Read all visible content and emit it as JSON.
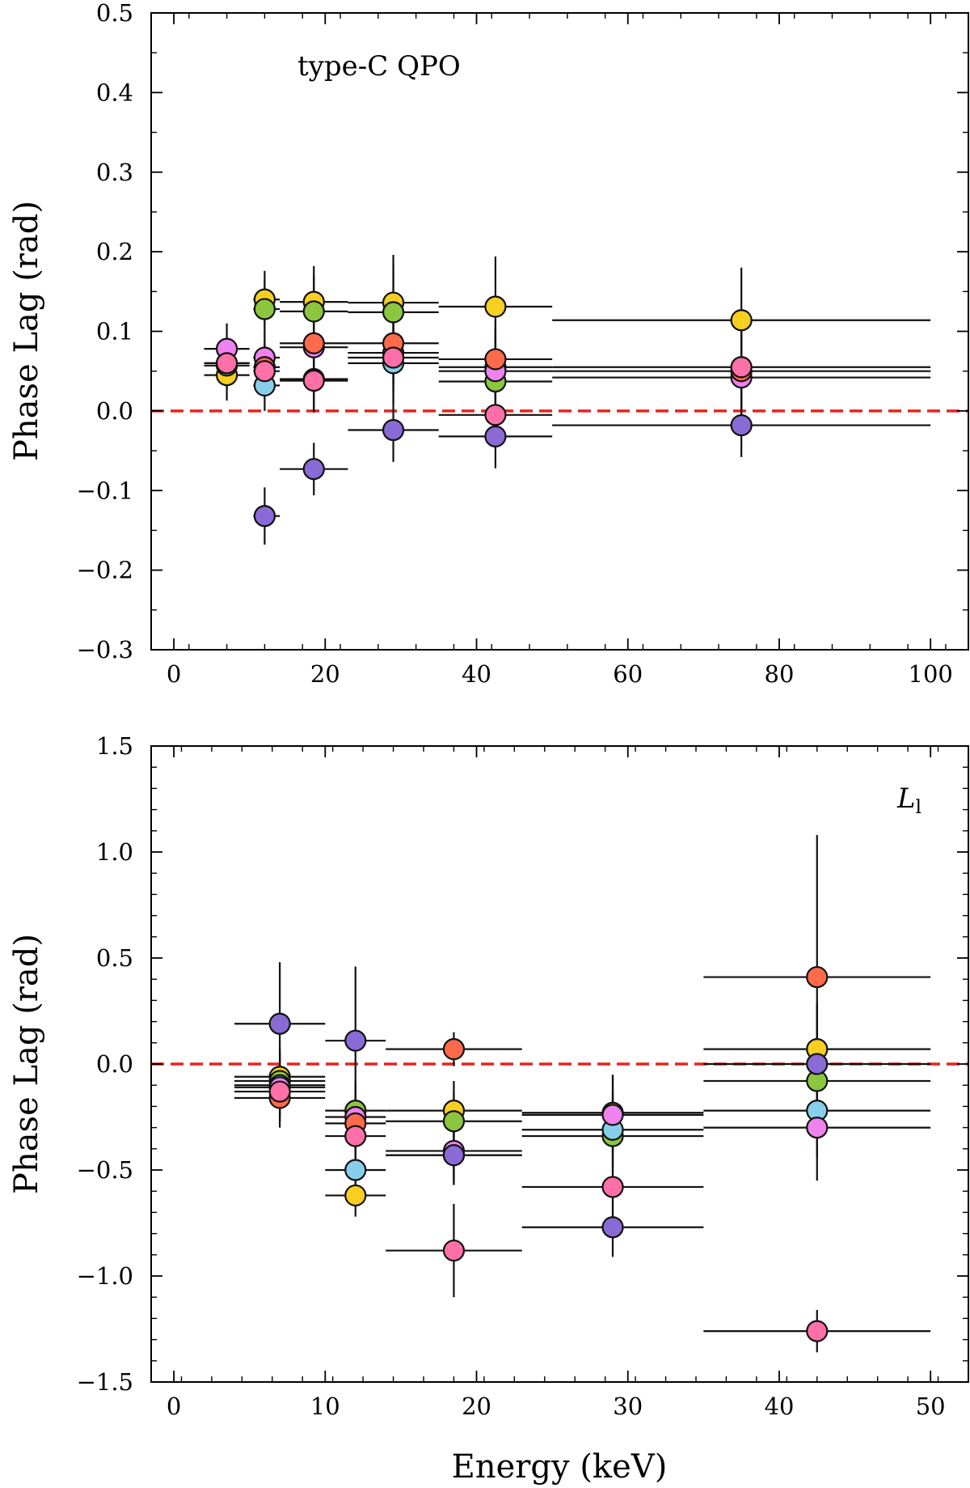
{
  "colors": {
    "zero_line": "#e8231e",
    "marker_edge": "#111111",
    "series": [
      "#f7cf20",
      "#8cc63f",
      "#87ceeb",
      "#ee82ee",
      "#ff6a4a",
      "#ff6fa8",
      "#8a6ad6"
    ]
  },
  "chart_data": [
    {
      "type": "scatter",
      "annotation": "type-C QPO",
      "xlabel": "",
      "ylabel": "Phase Lag (rad)",
      "xlim": [
        -3,
        105
      ],
      "ylim": [
        -0.3,
        0.5
      ],
      "xticks": [
        0,
        20,
        40,
        60,
        80,
        100
      ],
      "xtick_labels": [
        "0",
        "20",
        "40",
        "60",
        "80",
        "100"
      ],
      "yticks": [
        -0.3,
        -0.2,
        -0.1,
        0.0,
        0.1,
        0.2,
        0.3,
        0.4,
        0.5
      ],
      "ytick_labels": [
        "−0.3",
        "−0.2",
        "−0.1",
        "0.0",
        "0.1",
        "0.2",
        "0.3",
        "0.4",
        "0.5"
      ],
      "reference_line_y": 0,
      "points": [
        {
          "x": 7,
          "xlo": 4,
          "xhi": 10,
          "y": 0.045,
          "yerr": 0.032,
          "c": 0
        },
        {
          "x": 7,
          "xlo": 4,
          "xhi": 10,
          "y": 0.057,
          "yerr": 0.03,
          "c": 1
        },
        {
          "x": 7,
          "xlo": 4,
          "xhi": 10,
          "y": 0.06,
          "yerr": 0.03,
          "c": 2
        },
        {
          "x": 7,
          "xlo": 4,
          "xhi": 10,
          "y": 0.078,
          "yerr": 0.032,
          "c": 3
        },
        {
          "x": 7,
          "xlo": 4,
          "xhi": 10,
          "y": 0.06,
          "yerr": 0.03,
          "c": 5
        },
        {
          "x": 12,
          "xlo": 10.5,
          "xhi": 14,
          "y": 0.14,
          "yerr": 0.036,
          "c": 0
        },
        {
          "x": 12,
          "xlo": 10.5,
          "xhi": 14,
          "y": 0.128,
          "yerr": 0.036,
          "c": 1
        },
        {
          "x": 12,
          "xlo": 10.5,
          "xhi": 14,
          "y": 0.032,
          "yerr": 0.032,
          "c": 2
        },
        {
          "x": 12,
          "xlo": 10.5,
          "xhi": 14,
          "y": 0.067,
          "yerr": 0.034,
          "c": 3
        },
        {
          "x": 12,
          "xlo": 10.5,
          "xhi": 14,
          "y": 0.055,
          "yerr": 0.034,
          "c": 4
        },
        {
          "x": 12,
          "xlo": 10.5,
          "xhi": 14,
          "y": 0.05,
          "yerr": 0.034,
          "c": 5
        },
        {
          "x": 12,
          "xlo": 10.5,
          "xhi": 14,
          "y": -0.132,
          "yerr": 0.036,
          "c": 6
        },
        {
          "x": 18.5,
          "xlo": 14,
          "xhi": 23,
          "y": 0.137,
          "yerr": 0.045,
          "c": 0
        },
        {
          "x": 18.5,
          "xlo": 14,
          "xhi": 23,
          "y": 0.125,
          "yerr": 0.045,
          "c": 1
        },
        {
          "x": 18.5,
          "xlo": 14,
          "xhi": 23,
          "y": 0.04,
          "yerr": 0.04,
          "c": 2
        },
        {
          "x": 18.5,
          "xlo": 14,
          "xhi": 23,
          "y": 0.08,
          "yerr": 0.04,
          "c": 3
        },
        {
          "x": 18.5,
          "xlo": 14,
          "xhi": 23,
          "y": 0.085,
          "yerr": 0.04,
          "c": 4
        },
        {
          "x": 18.5,
          "xlo": 14,
          "xhi": 23,
          "y": 0.038,
          "yerr": 0.04,
          "c": 5
        },
        {
          "x": 18.5,
          "xlo": 14,
          "xhi": 23,
          "y": -0.073,
          "yerr": 0.033,
          "c": 6
        },
        {
          "x": 29,
          "xlo": 23,
          "xhi": 35,
          "y": 0.136,
          "yerr": 0.06,
          "c": 0
        },
        {
          "x": 29,
          "xlo": 23,
          "xhi": 35,
          "y": 0.124,
          "yerr": 0.06,
          "c": 1
        },
        {
          "x": 29,
          "xlo": 23,
          "xhi": 35,
          "y": 0.06,
          "yerr": 0.05,
          "c": 2
        },
        {
          "x": 29,
          "xlo": 23,
          "xhi": 35,
          "y": 0.073,
          "yerr": 0.05,
          "c": 3
        },
        {
          "x": 29,
          "xlo": 23,
          "xhi": 35,
          "y": 0.085,
          "yerr": 0.05,
          "c": 4
        },
        {
          "x": 29,
          "xlo": 23,
          "xhi": 35,
          "y": 0.067,
          "yerr": 0.05,
          "c": 5
        },
        {
          "x": 29,
          "xlo": 23,
          "xhi": 35,
          "y": -0.024,
          "yerr": 0.04,
          "c": 6
        },
        {
          "x": 42.5,
          "xlo": 35,
          "xhi": 50,
          "y": 0.131,
          "yerr": 0.063,
          "c": 0
        },
        {
          "x": 42.5,
          "xlo": 35,
          "xhi": 50,
          "y": 0.037,
          "yerr": 0.05,
          "c": 1
        },
        {
          "x": 42.5,
          "xlo": 35,
          "xhi": 50,
          "y": 0.055,
          "yerr": 0.05,
          "c": 2
        },
        {
          "x": 42.5,
          "xlo": 35,
          "xhi": 50,
          "y": 0.05,
          "yerr": 0.05,
          "c": 3
        },
        {
          "x": 42.5,
          "xlo": 35,
          "xhi": 50,
          "y": 0.065,
          "yerr": 0.05,
          "c": 4
        },
        {
          "x": 42.5,
          "xlo": 35,
          "xhi": 50,
          "y": -0.005,
          "yerr": 0.04,
          "c": 5
        },
        {
          "x": 42.5,
          "xlo": 35,
          "xhi": 50,
          "y": -0.032,
          "yerr": 0.04,
          "c": 6
        },
        {
          "x": 75,
          "xlo": 50,
          "xhi": 100,
          "y": 0.114,
          "yerr": 0.066,
          "c": 0
        },
        {
          "x": 75,
          "xlo": 50,
          "xhi": 100,
          "y": 0.042,
          "yerr": 0.05,
          "c": 3
        },
        {
          "x": 75,
          "xlo": 50,
          "xhi": 100,
          "y": 0.05,
          "yerr": 0.05,
          "c": 4
        },
        {
          "x": 75,
          "xlo": 50,
          "xhi": 100,
          "y": 0.055,
          "yerr": 0.05,
          "c": 5
        },
        {
          "x": 75,
          "xlo": 50,
          "xhi": 100,
          "y": -0.018,
          "yerr": 0.04,
          "c": 6
        }
      ]
    },
    {
      "type": "scatter",
      "annotation": "L",
      "annotation_sub": "l",
      "xlabel": "Energy (keV)",
      "ylabel": "Phase Lag (rad)",
      "xlim": [
        -1.5,
        52.5
      ],
      "ylim": [
        -1.5,
        1.5
      ],
      "xticks": [
        0,
        10,
        20,
        30,
        40,
        50
      ],
      "xtick_labels": [
        "0",
        "10",
        "20",
        "30",
        "40",
        "50"
      ],
      "yticks": [
        -1.5,
        -1.0,
        -0.5,
        0.0,
        0.5,
        1.0,
        1.5
      ],
      "ytick_labels": [
        "−1.5",
        "−1.0",
        "−0.5",
        "0.0",
        "0.5",
        "1.0",
        "1.5"
      ],
      "reference_line_y": 0,
      "points": [
        {
          "x": 7,
          "xlo": 4,
          "xhi": 10,
          "y": -0.06,
          "yerr": 0.14,
          "c": 0
        },
        {
          "x": 7,
          "xlo": 4,
          "xhi": 10,
          "y": -0.08,
          "yerr": 0.14,
          "c": 1
        },
        {
          "x": 7,
          "xlo": 4,
          "xhi": 10,
          "y": -0.1,
          "yerr": 0.14,
          "c": 2
        },
        {
          "x": 7,
          "xlo": 4,
          "xhi": 10,
          "y": -0.11,
          "yerr": 0.14,
          "c": 3
        },
        {
          "x": 7,
          "xlo": 4,
          "xhi": 10,
          "y": -0.16,
          "yerr": 0.14,
          "c": 4
        },
        {
          "x": 7,
          "xlo": 4,
          "xhi": 10,
          "y": -0.13,
          "yerr": 0.14,
          "c": 5
        },
        {
          "x": 7,
          "xlo": 4,
          "xhi": 10,
          "y": 0.19,
          "yerr": 0.29,
          "c": 6
        },
        {
          "x": 12,
          "xlo": 10,
          "xhi": 14,
          "y": -0.62,
          "yerr": 0.1,
          "c": 0
        },
        {
          "x": 12,
          "xlo": 10,
          "xhi": 14,
          "y": -0.22,
          "yerr": 0.14,
          "c": 1
        },
        {
          "x": 12,
          "xlo": 10,
          "xhi": 14,
          "y": -0.5,
          "yerr": 0.14,
          "c": 2
        },
        {
          "x": 12,
          "xlo": 10,
          "xhi": 14,
          "y": -0.25,
          "yerr": 0.14,
          "c": 3
        },
        {
          "x": 12,
          "xlo": 10,
          "xhi": 14,
          "y": -0.28,
          "yerr": 0.14,
          "c": 4
        },
        {
          "x": 12,
          "xlo": 10,
          "xhi": 14,
          "y": -0.34,
          "yerr": 0.14,
          "c": 5
        },
        {
          "x": 12,
          "xlo": 10,
          "xhi": 14,
          "y": 0.11,
          "yerr": 0.35,
          "c": 6
        },
        {
          "x": 18.5,
          "xlo": 14,
          "xhi": 23,
          "y": -0.22,
          "yerr": 0.14,
          "c": 0
        },
        {
          "x": 18.5,
          "xlo": 14,
          "xhi": 23,
          "y": -0.27,
          "yerr": 0.14,
          "c": 1
        },
        {
          "x": 18.5,
          "xlo": 14,
          "xhi": 23,
          "y": -0.43,
          "yerr": 0.14,
          "c": 2
        },
        {
          "x": 18.5,
          "xlo": 14,
          "xhi": 23,
          "y": -0.41,
          "yerr": 0.14,
          "c": 3
        },
        {
          "x": 18.5,
          "xlo": 14,
          "xhi": 23,
          "y": 0.07,
          "yerr": 0.08,
          "c": 4
        },
        {
          "x": 18.5,
          "xlo": 14,
          "xhi": 23,
          "y": -0.88,
          "yerr": 0.22,
          "c": 5
        },
        {
          "x": 18.5,
          "xlo": 14,
          "xhi": 23,
          "y": -0.43,
          "yerr": 0.14,
          "c": 6
        },
        {
          "x": 29,
          "xlo": 23,
          "xhi": 35,
          "y": -0.23,
          "yerr": 0.18,
          "c": 0
        },
        {
          "x": 29,
          "xlo": 23,
          "xhi": 35,
          "y": -0.34,
          "yerr": 0.18,
          "c": 1
        },
        {
          "x": 29,
          "xlo": 23,
          "xhi": 35,
          "y": -0.31,
          "yerr": 0.18,
          "c": 2
        },
        {
          "x": 29,
          "xlo": 23,
          "xhi": 35,
          "y": -0.24,
          "yerr": 0.18,
          "c": 3
        },
        {
          "x": 29,
          "xlo": 23,
          "xhi": 35,
          "y": -0.58,
          "yerr": 0.18,
          "c": 5
        },
        {
          "x": 29,
          "xlo": 23,
          "xhi": 35,
          "y": -0.77,
          "yerr": 0.14,
          "c": 6
        },
        {
          "x": 42.5,
          "xlo": 35,
          "xhi": 50,
          "y": 0.07,
          "yerr": 0.22,
          "c": 0
        },
        {
          "x": 42.5,
          "xlo": 35,
          "xhi": 50,
          "y": -0.08,
          "yerr": 0.22,
          "c": 1
        },
        {
          "x": 42.5,
          "xlo": 35,
          "xhi": 50,
          "y": -0.22,
          "yerr": 0.22,
          "c": 2
        },
        {
          "x": 42.5,
          "xlo": 35,
          "xhi": 50,
          "y": -0.3,
          "yerr": 0.25,
          "c": 3
        },
        {
          "x": 42.5,
          "xlo": 35,
          "xhi": 50,
          "y": 0.41,
          "yerr": 0.67,
          "c": 4
        },
        {
          "x": 42.5,
          "xlo": 35,
          "xhi": 50,
          "y": -1.26,
          "yerr": 0.1,
          "c": 5
        },
        {
          "x": 42.5,
          "xlo": 35,
          "xhi": 50,
          "y": 0.0,
          "yerr": 0.28,
          "c": 6
        }
      ]
    }
  ]
}
